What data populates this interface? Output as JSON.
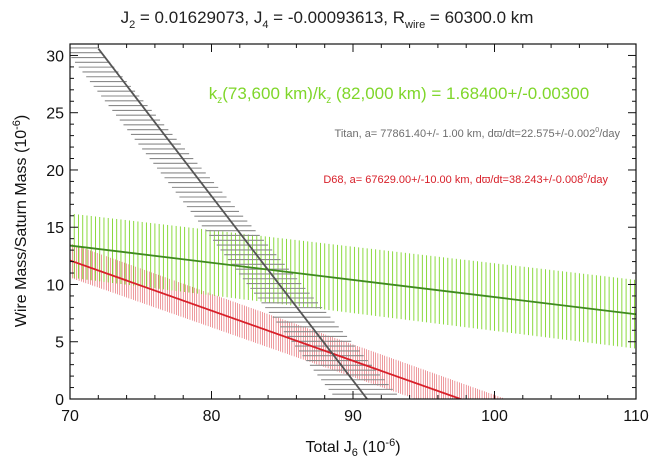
{
  "chart_data": {
    "type": "line",
    "title": {
      "j2_label": "J",
      "j2_sub": "2",
      "j2_value": " =  0.01629073, ",
      "j4_label": "J",
      "j4_sub": "4",
      "j4_value": " = -0.00093613, ",
      "rwire_label": "R",
      "rwire_sub": "wire",
      "rwire_value": " = 60300.0 km"
    },
    "xlabel": {
      "main": "Total J",
      "sub": "6",
      "paren": " (10",
      "exp": "-6",
      "close": ")"
    },
    "ylabel": {
      "main": "Wire Mass/Saturn Mass (10",
      "exp": "-6",
      "close": ")"
    },
    "xlim": [
      70,
      110
    ],
    "ylim": [
      0,
      31
    ],
    "xticks": [
      "70",
      "80",
      "90",
      "100",
      "110"
    ],
    "yticks": [
      "0",
      "5",
      "10",
      "15",
      "20",
      "25",
      "30"
    ],
    "series": [
      {
        "color": "#d8202a",
        "band_color": "#d8202a",
        "x": [
          70,
          97.6
        ],
        "y": [
          12.1,
          0.0
        ],
        "band_x": [
          [
            70,
            100.8
          ],
          [
            70,
            94.4
          ]
        ],
        "band_y": [
          [
            13.6,
            0.0
          ],
          [
            10.6,
            0.0
          ]
        ]
      },
      {
        "color": "#3f8a1f",
        "band_color": "#7fd62a",
        "x": [
          70,
          110
        ],
        "y": [
          13.4,
          7.4
        ],
        "band_x": [
          [
            70,
            110
          ],
          [
            70,
            110
          ]
        ],
        "band_y": [
          [
            16.2,
            10.4
          ],
          [
            10.6,
            4.4
          ]
        ]
      },
      {
        "color": "#555555",
        "band_color": "#8a8a8a",
        "x": [
          72.0,
          91.0
        ],
        "y": [
          30.6,
          0.0
        ],
        "band_x": [
          [
            72.0,
            93.4
          ],
          [
            69.6,
            88.8
          ]
        ],
        "band_y": [
          [
            30.6,
            0.0
          ],
          [
            30.6,
            0.0
          ]
        ]
      }
    ],
    "annotations": {
      "ratio": {
        "k1": "k",
        "s1": "z",
        "t1": "(73,600 km)/k",
        "s2": "z",
        "t2": " (82,000 km) = 1.68400+/-0.00300"
      },
      "titan": {
        "t1": "Titan, a= 77861.40+/- 1.00 km, d",
        "varpi": "ϖ",
        "t2": "/dt=22.575+/-0.002",
        "sup": "0",
        "t3": "/day"
      },
      "d68": {
        "t1": "D68, a= 67629.00+/-10.00 km, d",
        "varpi": "ϖ",
        "t2": "/dt=38.243+/-0.008",
        "sup": "0",
        "t3": "/day"
      }
    },
    "colors": {
      "green_text": "#7fd62a",
      "gray_text": "#6e6e6e",
      "red_text": "#d8202a"
    },
    "grid": false,
    "legend": "none"
  }
}
